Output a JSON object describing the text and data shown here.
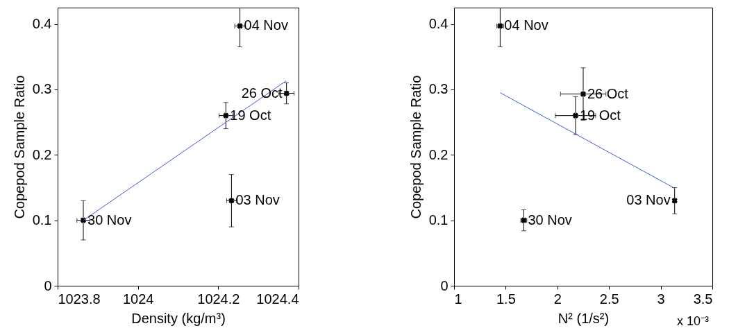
{
  "chart_data": [
    {
      "type": "scatter",
      "xlabel": "Density (kg/m³)",
      "ylabel": "Copepod Sample Ratio",
      "xlim": [
        1023.8,
        1024.4
      ],
      "xticks": [
        1023.8,
        1024,
        1024.2,
        1024.4
      ],
      "ylim": [
        0,
        0.425
      ],
      "yticks": [
        0,
        0.1,
        0.2,
        0.3,
        0.4
      ],
      "series": [
        {
          "type": "scatter",
          "marker": "cross",
          "color": "#000000",
          "x": [
            1023.864,
            1024.219,
            1024.37,
            1024.254,
            1024.233
          ],
          "values": [
            0.1,
            0.26,
            0.294,
            0.397,
            0.13
          ],
          "errors": [
            0.03,
            0.02,
            0.016,
            0.032,
            0.04
          ],
          "xerrors": [
            0.016,
            0.017,
            0.019,
            0.013,
            0.012
          ]
        },
        {
          "type": "line",
          "color": "#3a5fcd",
          "x": [
            1023.864,
            1024.369
          ],
          "values": [
            0.1,
            0.313
          ]
        }
      ],
      "annotations": [
        {
          "text": "30 Nov",
          "x": 1023.864,
          "y": 0.1
        },
        {
          "text": "19 Oct",
          "x": 1024.219,
          "y": 0.26
        },
        {
          "text": "26 Oct",
          "x": 1024.37,
          "y": 0.294
        },
        {
          "text": "04 Nov",
          "x": 1024.254,
          "y": 0.397
        },
        {
          "text": "03 Nov",
          "x": 1024.233,
          "y": 0.13
        }
      ]
    },
    {
      "type": "scatter",
      "xlabel": "N² (1/s²)",
      "ylabel": "Copepod Sample Ratio",
      "xlim": [
        1,
        3.5
      ],
      "xticks": [
        1,
        1.5,
        2,
        2.5,
        3,
        3.5
      ],
      "ylim": [
        0,
        0.425
      ],
      "yticks": [
        0,
        0.1,
        0.2,
        0.3,
        0.4
      ],
      "series": [
        {
          "type": "scatter",
          "marker": "cross",
          "color": "#000000",
          "x": [
            1.675,
            2.176,
            2.25,
            1.446,
            3.135
          ],
          "values": [
            0.1,
            0.26,
            0.293,
            0.397,
            0.13
          ],
          "errors": [
            0.016,
            0.029,
            0.04,
            0.032,
            0.02
          ],
          "xerrors": [
            0.029,
            0.195,
            0.22,
            0.033,
            0.018
          ]
        },
        {
          "type": "line",
          "color": "#3a5fcd",
          "x": [
            1.446,
            3.135
          ],
          "values": [
            0.295,
            0.149
          ]
        }
      ],
      "annotations": [
        {
          "text": "30 Nov",
          "x": 1.675,
          "y": 0.1
        },
        {
          "text": "19 Oct",
          "x": 2.176,
          "y": 0.26
        },
        {
          "text": "26 Oct",
          "x": 2.25,
          "y": 0.293
        },
        {
          "text": "04 Nov",
          "x": 1.446,
          "y": 0.397
        },
        {
          "text": "03 Nov",
          "x": 3.135,
          "y": 0.13
        },
        "x 10⁻³"
      ]
    }
  ]
}
